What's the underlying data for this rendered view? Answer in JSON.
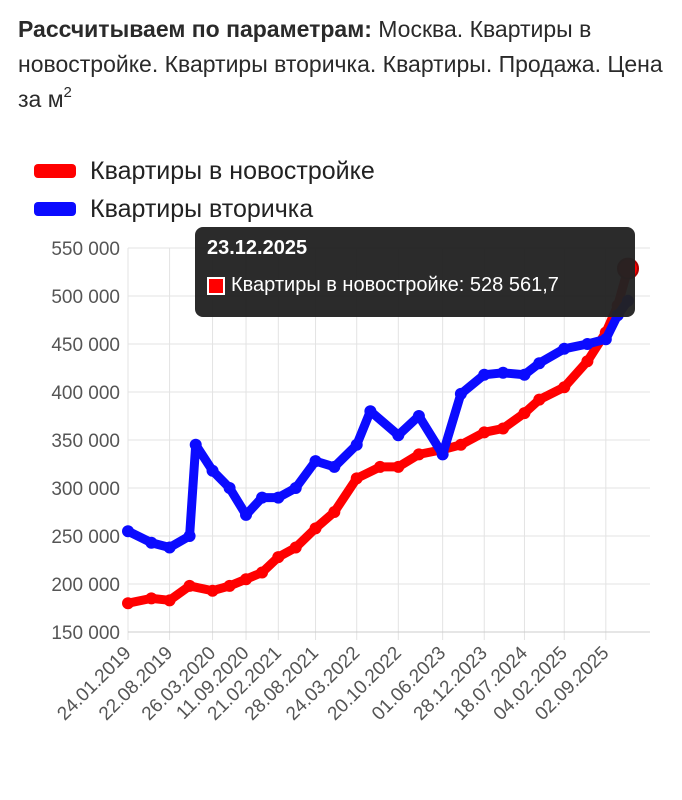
{
  "header": {
    "bold_prefix": "Рассчитываем по параметрам:",
    "params_text": " Москва. Квартиры в новостройке. Квартиры вторичка. Квартиры. Продажа. Цена за м",
    "superscript": "2"
  },
  "colors": {
    "red": "#ff0000",
    "blue": "#0b0bff",
    "grid": "#e3e3e3",
    "tooltip_bg": "#222222"
  },
  "tooltip": {
    "date": "23.12.2025",
    "label": "Квартиры в новостройке: 528 561,7"
  },
  "chart_data": {
    "type": "line",
    "title": "",
    "xlabel": "",
    "ylabel": "",
    "ylim": [
      150000,
      550000
    ],
    "y_ticks": [
      "550 000",
      "500 000",
      "450 000",
      "400 000",
      "350 000",
      "300 000",
      "250 000",
      "200 000",
      "150 000"
    ],
    "x_tick_labels": [
      "24.01.2019",
      "22.08.2019",
      "26.03.2020",
      "11.09.2020",
      "21.02.2021",
      "28.08.2021",
      "24.03.2022",
      "20.10.2022",
      "01.06.2023",
      "28.12.2023",
      "18.07.2024",
      "04.02.2025",
      "02.09.2025"
    ],
    "grid": true,
    "legend_placement": "top-left",
    "series": [
      {
        "name": "Квартиры в новостройке",
        "color": "#ff0000",
        "x": [
          "24.01.2019",
          "22.05.2019",
          "22.08.2019",
          "01.12.2019",
          "26.03.2020",
          "20.06.2020",
          "11.09.2020",
          "01.12.2020",
          "21.02.2021",
          "20.05.2021",
          "28.08.2021",
          "01.12.2021",
          "24.03.2022",
          "20.07.2022",
          "20.10.2022",
          "01.02.2023",
          "01.06.2023",
          "01.09.2023",
          "28.12.2023",
          "01.04.2024",
          "18.07.2024",
          "01.10.2024",
          "04.02.2025",
          "01.06.2025",
          "02.09.2025",
          "01.11.2025",
          "23.12.2025"
        ],
        "values": [
          180000,
          185000,
          183000,
          198000,
          193000,
          198000,
          205000,
          212000,
          228000,
          238000,
          258000,
          275000,
          310000,
          322000,
          322000,
          335000,
          340000,
          345000,
          358000,
          362000,
          378000,
          392000,
          405000,
          432000,
          462000,
          490000,
          528562
        ]
      },
      {
        "name": "Квартиры вторичка",
        "color": "#0b0bff",
        "x": [
          "24.01.2019",
          "22.05.2019",
          "22.08.2019",
          "01.12.2019",
          "01.01.2020",
          "26.03.2020",
          "20.06.2020",
          "11.09.2020",
          "01.12.2020",
          "21.02.2021",
          "20.05.2021",
          "28.08.2021",
          "01.12.2021",
          "24.03.2022",
          "01.06.2022",
          "20.10.2022",
          "01.02.2023",
          "01.06.2023",
          "01.09.2023",
          "28.12.2023",
          "01.04.2024",
          "18.07.2024",
          "01.10.2024",
          "04.02.2025",
          "01.06.2025",
          "02.09.2025",
          "01.11.2025",
          "23.12.2025"
        ],
        "values": [
          255000,
          243000,
          238000,
          250000,
          345000,
          318000,
          300000,
          272000,
          290000,
          290000,
          300000,
          328000,
          322000,
          345000,
          380000,
          355000,
          375000,
          335000,
          398000,
          418000,
          420000,
          418000,
          430000,
          445000,
          450000,
          455000,
          480000,
          495000
        ]
      }
    ]
  }
}
